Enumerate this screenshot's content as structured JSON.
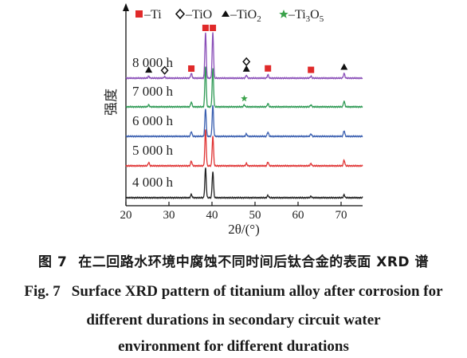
{
  "chart_data": {
    "type": "line",
    "xlabel": "2θ/(°)",
    "ylabel": "强度",
    "xlim": [
      20,
      75
    ],
    "x_ticks": [
      "20",
      "30",
      "40",
      "50",
      "60",
      "70"
    ],
    "grid": false,
    "legend_position": "top",
    "legend": [
      {
        "name": "Ti",
        "marker": "square",
        "color": "#e02a2a"
      },
      {
        "name": "TiO",
        "marker": "diamond-open",
        "color": "#111111"
      },
      {
        "name": "TiO2",
        "marker": "triangle",
        "color": "#111111"
      },
      {
        "name": "Ti3O5",
        "marker": "star",
        "color": "#3aa24a"
      }
    ],
    "legend_labels": {
      "ti": "–Ti",
      "tio": "–TiO",
      "tio2_base": "–TiO",
      "tio2_sub": "2",
      "ti3o5_base": "–Ti",
      "ti3o5_sub1": "3",
      "ti3o5_mid": "O",
      "ti3o5_sub2": "5"
    },
    "series": [
      {
        "name": "4 000 h",
        "color": "#222222",
        "peaks": [
          [
            35.2,
            0.07
          ],
          [
            38.5,
            0.62
          ],
          [
            40.2,
            0.55
          ],
          [
            53.0,
            0.05
          ],
          [
            63.0,
            0.03
          ],
          [
            70.7,
            0.06
          ]
        ]
      },
      {
        "name": "5 000 h",
        "color": "#e03434",
        "peaks": [
          [
            25.3,
            0.07
          ],
          [
            35.2,
            0.1
          ],
          [
            38.5,
            0.75
          ],
          [
            40.2,
            0.62
          ],
          [
            48.0,
            0.05
          ],
          [
            53.0,
            0.08
          ],
          [
            63.0,
            0.05
          ],
          [
            70.7,
            0.12
          ]
        ]
      },
      {
        "name": "6 000 h",
        "color": "#3a5fb0",
        "peaks": [
          [
            35.2,
            0.1
          ],
          [
            38.5,
            0.58
          ],
          [
            40.2,
            0.65
          ],
          [
            48.0,
            0.05
          ],
          [
            53.0,
            0.09
          ],
          [
            63.0,
            0.05
          ],
          [
            70.7,
            0.12
          ]
        ]
      },
      {
        "name": "7 000 h",
        "color": "#2f9a55",
        "peaks": [
          [
            25.3,
            0.04
          ],
          [
            35.2,
            0.1
          ],
          [
            38.5,
            0.85
          ],
          [
            40.2,
            0.8
          ],
          [
            47.5,
            0.04
          ],
          [
            53.0,
            0.07
          ],
          [
            63.0,
            0.04
          ],
          [
            70.7,
            0.12
          ]
        ]
      },
      {
        "name": "8 000 h",
        "color": "#8a4fb8",
        "peaks": [
          [
            25.3,
            0.04
          ],
          [
            29.0,
            0.03
          ],
          [
            35.2,
            0.1
          ],
          [
            38.5,
            0.95
          ],
          [
            40.2,
            0.95
          ],
          [
            48.0,
            0.06
          ],
          [
            53.0,
            0.07
          ],
          [
            63.0,
            0.04
          ],
          [
            70.7,
            0.1
          ]
        ]
      }
    ],
    "annotations": [
      {
        "phase": "Ti",
        "marker": "square",
        "series": "8 000 h",
        "x": 35.2
      },
      {
        "phase": "Ti",
        "marker": "square",
        "series": "8 000 h",
        "x": 38.5
      },
      {
        "phase": "Ti",
        "marker": "square",
        "series": "8 000 h",
        "x": 40.2
      },
      {
        "phase": "Ti",
        "marker": "square",
        "series": "8 000 h",
        "x": 53.0
      },
      {
        "phase": "Ti",
        "marker": "square",
        "series": "8 000 h",
        "x": 63.0
      },
      {
        "phase": "TiO2",
        "marker": "triangle",
        "series": "8 000 h",
        "x": 25.3
      },
      {
        "phase": "TiO2",
        "marker": "triangle",
        "series": "8 000 h",
        "x": 48.0
      },
      {
        "phase": "TiO2",
        "marker": "triangle",
        "series": "8 000 h",
        "x": 70.7
      },
      {
        "phase": "TiO",
        "marker": "diamond-open",
        "series": "8 000 h",
        "x": 29.0
      },
      {
        "phase": "TiO",
        "marker": "diamond-open",
        "series": "8 000 h",
        "x": 48.0
      },
      {
        "phase": "Ti3O5",
        "marker": "star",
        "series": "7 000 h",
        "x": 47.5
      }
    ]
  },
  "caption": {
    "cn_number": "图 7",
    "cn_text": "在二回路水环境中腐蚀不同时间后钛合金的表面 XRD 谱",
    "en_number": "Fig. 7",
    "en_line1": "Surface XRD pattern of titanium alloy after corrosion for",
    "en_line2": "different durations in secondary circuit water",
    "en_line3": "environment for different durations"
  }
}
